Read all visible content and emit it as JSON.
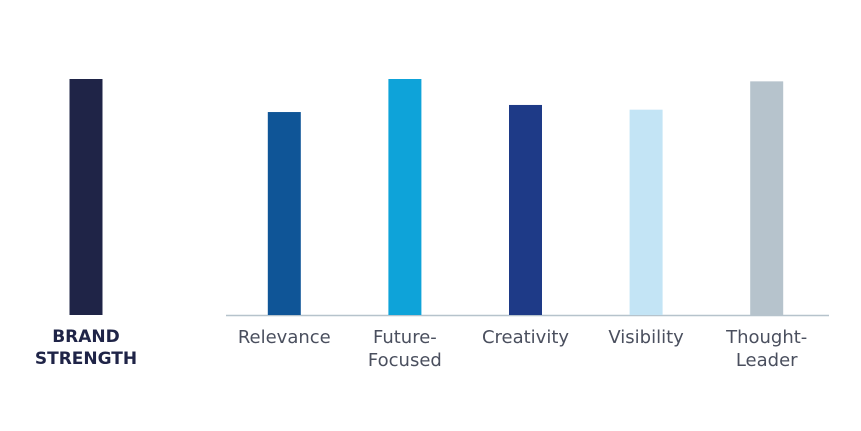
{
  "chart_data": [
    {
      "type": "bar",
      "categories": [
        "BRAND STRENGTH"
      ],
      "values": [
        100
      ],
      "colors": [
        "#1f2447"
      ],
      "ylim": [
        0,
        100
      ]
    },
    {
      "type": "bar",
      "categories": [
        "Relevance",
        "Future-Focused",
        "Creativity",
        "Visibility",
        "Thought-Leader"
      ],
      "values": [
        86,
        100,
        89,
        87,
        99
      ],
      "colors": [
        "#0f5597",
        "#0ea3d9",
        "#1e3a87",
        "#c3e4f5",
        "#b6c3cc"
      ],
      "ylim": [
        0,
        100
      ]
    }
  ]
}
